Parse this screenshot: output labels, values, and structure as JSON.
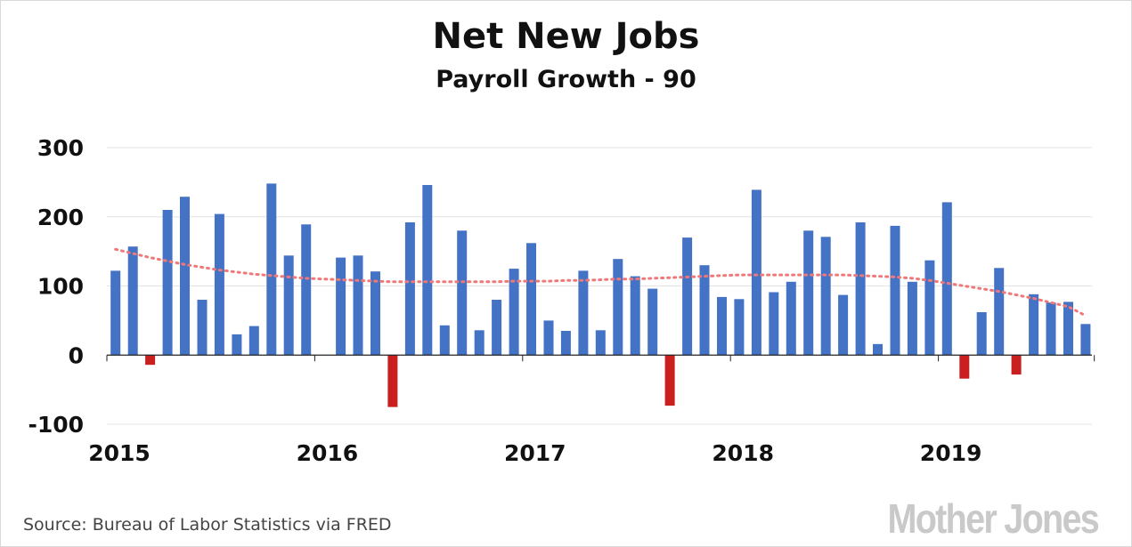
{
  "title": "Net New Jobs",
  "subtitle": "Payroll Growth - 90",
  "source": "Source: Bureau of Labor Statistics via FRED",
  "brand": "Mother Jones",
  "colors": {
    "positive": "#4472c4",
    "negative": "#c91f1f",
    "trend": "#f07878",
    "grid": "#e3e3e3",
    "axis": "#222222"
  },
  "chart_data": {
    "type": "bar",
    "title": "Net New Jobs",
    "subtitle": "Payroll Growth - 90",
    "xlabel": "",
    "ylabel": "",
    "ylim": [
      -100,
      300
    ],
    "yticks": [
      -100,
      0,
      100,
      200,
      300
    ],
    "xtick_labels": [
      "2015",
      "2016",
      "2017",
      "2018",
      "2019"
    ],
    "grid": true,
    "start": "2015-01",
    "values": [
      122,
      157,
      -14,
      210,
      229,
      80,
      204,
      30,
      42,
      248,
      144,
      189,
      0,
      141,
      144,
      121,
      -75,
      192,
      246,
      43,
      180,
      36,
      80,
      125,
      162,
      50,
      35,
      122,
      36,
      139,
      114,
      96,
      -73,
      170,
      130,
      84,
      81,
      239,
      91,
      106,
      180,
      171,
      87,
      192,
      16,
      187,
      106,
      137,
      221,
      -34,
      62,
      126,
      -28,
      88,
      76,
      77,
      45
    ],
    "trend": [
      153,
      147,
      141,
      136,
      131,
      127,
      123,
      120,
      117,
      115,
      113,
      111,
      110,
      109,
      108,
      107,
      106,
      106,
      106,
      106,
      106,
      106,
      106,
      107,
      107,
      107,
      108,
      108,
      109,
      110,
      110,
      111,
      112,
      113,
      114,
      115,
      116,
      116,
      116,
      116,
      116,
      116,
      116,
      115,
      114,
      113,
      111,
      108,
      104,
      100,
      96,
      92,
      87,
      82,
      76,
      70,
      57
    ]
  }
}
